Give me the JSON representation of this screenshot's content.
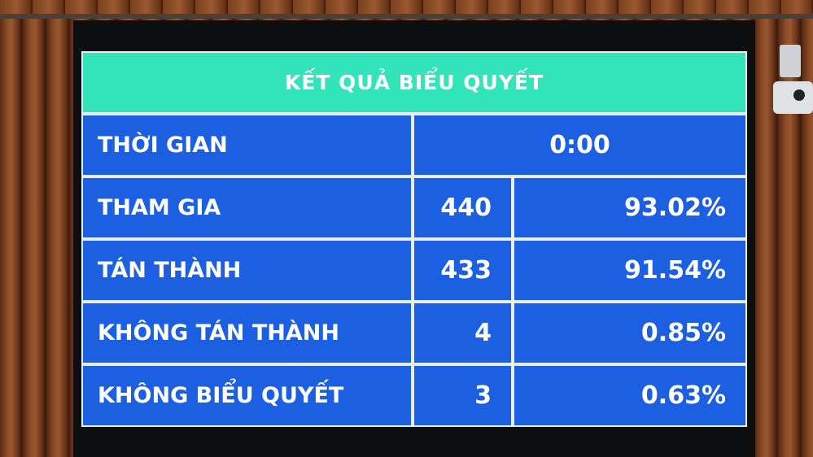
{
  "board": {
    "title": "KẾT QUẢ BIỂU QUYẾT",
    "time_label": "THỜI GIAN",
    "time_value": "0:00",
    "rows": [
      {
        "label": "THAM GIA",
        "count": "440",
        "percent": "93.02%"
      },
      {
        "label": "TÁN THÀNH",
        "count": "433",
        "percent": "91.54%"
      },
      {
        "label": "KHÔNG TÁN THÀNH",
        "count": "4",
        "percent": "0.85%"
      },
      {
        "label": "KHÔNG BIỂU QUYẾT",
        "count": "3",
        "percent": "0.63%"
      }
    ]
  },
  "colors": {
    "header": "#33e3b9",
    "cells": "#1c5fe0",
    "text": "#ffffff"
  }
}
